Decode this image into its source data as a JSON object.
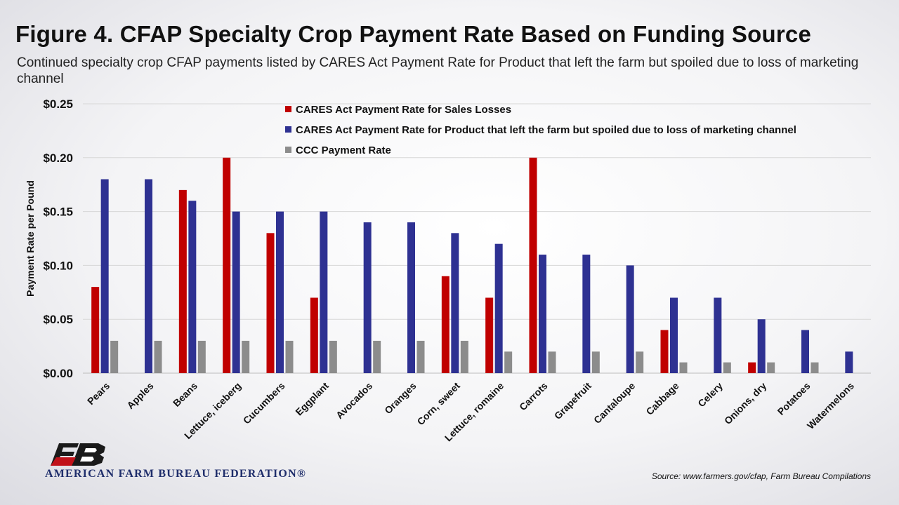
{
  "header": {
    "title": "Figure 4. CFAP Specialty Crop Payment Rate Based on Funding Source",
    "subtitle": "Continued specialty crop CFAP payments listed by CARES Act Payment Rate for Product that left the farm but spoiled due to loss of marketing channel"
  },
  "footer": {
    "source": "Source: www.farmers.gov/cfap, Farm Bureau Compilations",
    "org_name": "AMERICAN FARM BUREAU FEDERATION®"
  },
  "logo": {
    "icon": "fb-logo-icon",
    "color_dark": "#1a1a1a",
    "color_red": "#c1121a"
  },
  "colors": {
    "sales": "#c00000",
    "spoiled": "#2e3192",
    "ccc": "#8c8c8c",
    "grid": "#d7d7d7"
  },
  "chart_data": {
    "type": "bar",
    "title": "Figure 4. CFAP Specialty Crop Payment Rate Based on Funding Source",
    "subtitle": "Continued specialty crop CFAP payments listed by CARES Act Payment Rate for Product that left the farm but spoiled due to loss of marketing channel",
    "xlabel": "",
    "ylabel": "Payment Rate per Pound",
    "ylim": [
      0,
      0.25
    ],
    "yticks": [
      0,
      0.05,
      0.1,
      0.15,
      0.2,
      0.25
    ],
    "ytick_labels": [
      "$0.00",
      "$0.05",
      "$0.10",
      "$0.15",
      "$0.20",
      "$0.25"
    ],
    "grid": true,
    "legend_position": "top-center",
    "categories": [
      "Pears",
      "Apples",
      "Beans",
      "Lettuce, iceberg",
      "Cucumbers",
      "Eggplant",
      "Avocados",
      "Oranges",
      "Corn, sweet",
      "Lettuce, romaine",
      "Carrots",
      "Grapefruit",
      "Cantaloupe",
      "Cabbage",
      "Celery",
      "Onions, dry",
      "Potatoes",
      "Watermelons"
    ],
    "series": [
      {
        "name": "CARES Act Payment Rate for Sales Losses",
        "color": "#c00000",
        "values": [
          0.08,
          null,
          0.17,
          0.2,
          0.13,
          0.07,
          null,
          null,
          0.09,
          0.07,
          0.2,
          null,
          null,
          0.04,
          null,
          0.01,
          null,
          null
        ]
      },
      {
        "name": "CARES Act Payment Rate for Product that left the farm but spoiled due to loss of marketing channel",
        "color": "#2e3192",
        "values": [
          0.18,
          0.18,
          0.16,
          0.15,
          0.15,
          0.15,
          0.14,
          0.14,
          0.13,
          0.12,
          0.11,
          0.11,
          0.1,
          0.07,
          0.07,
          0.05,
          0.04,
          0.02
        ]
      },
      {
        "name": "CCC Payment Rate",
        "color": "#8c8c8c",
        "values": [
          0.03,
          0.03,
          0.03,
          0.03,
          0.03,
          0.03,
          0.03,
          0.03,
          0.03,
          0.02,
          0.02,
          0.02,
          0.02,
          0.01,
          0.01,
          0.01,
          0.01,
          null
        ]
      }
    ]
  }
}
